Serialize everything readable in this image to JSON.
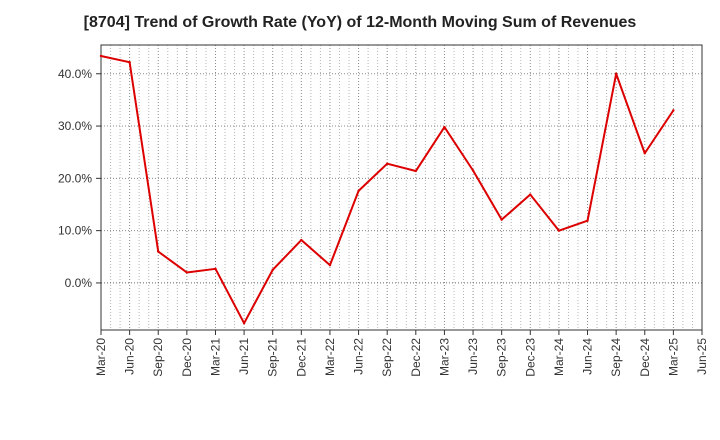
{
  "chart_data": {
    "type": "line",
    "title": "[8704]  Trend of Growth Rate (YoY) of 12-Month Moving Sum of Revenues",
    "xlabel": "",
    "ylabel": "",
    "x": [
      "Mar-20",
      "Jun-20",
      "Sep-20",
      "Dec-20",
      "Mar-21",
      "Jun-21",
      "Sep-21",
      "Dec-21",
      "Mar-22",
      "Jun-22",
      "Sep-22",
      "Dec-22",
      "Mar-23",
      "Jun-23",
      "Sep-23",
      "Dec-23",
      "Mar-24",
      "Jun-24",
      "Sep-24",
      "Dec-24",
      "Mar-25",
      "Jun-25"
    ],
    "series": [
      {
        "values": [
          43.4,
          42.2,
          6.0,
          2.0,
          2.7,
          -7.7,
          2.5,
          8.2,
          3.4,
          17.6,
          22.8,
          21.4,
          29.8,
          21.5,
          12.1,
          16.9,
          10.0,
          11.9,
          40.0,
          24.8,
          33.0,
          null
        ],
        "color": "#dd0000"
      }
    ],
    "y_ticks": [
      0,
      10,
      20,
      30,
      40
    ],
    "y_tick_labels": [
      "0.0%",
      "10.0%",
      "20.0%",
      "30.0%",
      "40.0%"
    ],
    "ylim": [
      -9,
      45.5
    ],
    "grid": true
  }
}
